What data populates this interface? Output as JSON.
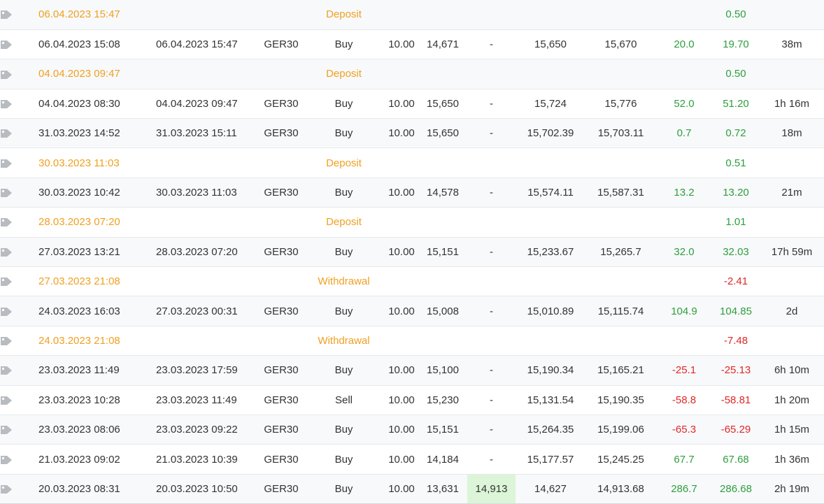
{
  "colors": {
    "orange": "#f0a020",
    "green": "#2e9e3e",
    "red": "#e02828",
    "tp_highlight": "#dcf5d8",
    "tag_icon": "#b8bcc0"
  },
  "icon": "tag-icon",
  "rows": [
    {
      "type": "balance",
      "open_time": "06.04.2023 15:47",
      "label": "Deposit",
      "profit": "0.50",
      "profit_color": "green"
    },
    {
      "type": "trade",
      "open_time": "06.04.2023 15:08",
      "close_time": "06.04.2023 15:47",
      "symbol": "GER30",
      "action": "Buy",
      "lots": "10.00",
      "sl": "14,671",
      "tp": "-",
      "open_price": "15,650",
      "close_price": "15,670",
      "pips": "20.0",
      "profit": "19.70",
      "duration": "38m",
      "profit_color": "green"
    },
    {
      "type": "balance",
      "open_time": "04.04.2023 09:47",
      "label": "Deposit",
      "profit": "0.50",
      "profit_color": "green"
    },
    {
      "type": "trade",
      "open_time": "04.04.2023 08:30",
      "close_time": "04.04.2023 09:47",
      "symbol": "GER30",
      "action": "Buy",
      "lots": "10.00",
      "sl": "15,650",
      "tp": "-",
      "open_price": "15,724",
      "close_price": "15,776",
      "pips": "52.0",
      "profit": "51.20",
      "duration": "1h 16m",
      "profit_color": "green"
    },
    {
      "type": "trade",
      "open_time": "31.03.2023 14:52",
      "close_time": "31.03.2023 15:11",
      "symbol": "GER30",
      "action": "Buy",
      "lots": "10.00",
      "sl": "15,650",
      "tp": "-",
      "open_price": "15,702.39",
      "close_price": "15,703.11",
      "pips": "0.7",
      "profit": "0.72",
      "duration": "18m",
      "profit_color": "green"
    },
    {
      "type": "balance",
      "open_time": "30.03.2023 11:03",
      "label": "Deposit",
      "profit": "0.51",
      "profit_color": "green"
    },
    {
      "type": "trade",
      "open_time": "30.03.2023 10:42",
      "close_time": "30.03.2023 11:03",
      "symbol": "GER30",
      "action": "Buy",
      "lots": "10.00",
      "sl": "14,578",
      "tp": "-",
      "open_price": "15,574.11",
      "close_price": "15,587.31",
      "pips": "13.2",
      "profit": "13.20",
      "duration": "21m",
      "profit_color": "green"
    },
    {
      "type": "balance",
      "open_time": "28.03.2023 07:20",
      "label": "Deposit",
      "profit": "1.01",
      "profit_color": "green"
    },
    {
      "type": "trade",
      "open_time": "27.03.2023 13:21",
      "close_time": "28.03.2023 07:20",
      "symbol": "GER30",
      "action": "Buy",
      "lots": "10.00",
      "sl": "15,151",
      "tp": "-",
      "open_price": "15,233.67",
      "close_price": "15,265.7",
      "pips": "32.0",
      "profit": "32.03",
      "duration": "17h 59m",
      "profit_color": "green"
    },
    {
      "type": "balance",
      "open_time": "27.03.2023 21:08",
      "label": "Withdrawal",
      "profit": "-2.41",
      "profit_color": "red"
    },
    {
      "type": "trade",
      "open_time": "24.03.2023 16:03",
      "close_time": "27.03.2023 00:31",
      "symbol": "GER30",
      "action": "Buy",
      "lots": "10.00",
      "sl": "15,008",
      "tp": "-",
      "open_price": "15,010.89",
      "close_price": "15,115.74",
      "pips": "104.9",
      "profit": "104.85",
      "duration": "2d",
      "profit_color": "green"
    },
    {
      "type": "balance",
      "open_time": "24.03.2023 21:08",
      "label": "Withdrawal",
      "profit": "-7.48",
      "profit_color": "red"
    },
    {
      "type": "trade",
      "open_time": "23.03.2023 11:49",
      "close_time": "23.03.2023 17:59",
      "symbol": "GER30",
      "action": "Buy",
      "lots": "10.00",
      "sl": "15,100",
      "tp": "-",
      "open_price": "15,190.34",
      "close_price": "15,165.21",
      "pips": "-25.1",
      "profit": "-25.13",
      "duration": "6h 10m",
      "profit_color": "red"
    },
    {
      "type": "trade",
      "open_time": "23.03.2023 10:28",
      "close_time": "23.03.2023 11:49",
      "symbol": "GER30",
      "action": "Sell",
      "lots": "10.00",
      "sl": "15,230",
      "tp": "-",
      "open_price": "15,131.54",
      "close_price": "15,190.35",
      "pips": "-58.8",
      "profit": "-58.81",
      "duration": "1h 20m",
      "profit_color": "red"
    },
    {
      "type": "trade",
      "open_time": "23.03.2023 08:06",
      "close_time": "23.03.2023 09:22",
      "symbol": "GER30",
      "action": "Buy",
      "lots": "10.00",
      "sl": "15,151",
      "tp": "-",
      "open_price": "15,264.35",
      "close_price": "15,199.06",
      "pips": "-65.3",
      "profit": "-65.29",
      "duration": "1h 15m",
      "profit_color": "red"
    },
    {
      "type": "trade",
      "open_time": "21.03.2023 09:02",
      "close_time": "21.03.2023 10:39",
      "symbol": "GER30",
      "action": "Buy",
      "lots": "10.00",
      "sl": "14,184",
      "tp": "-",
      "open_price": "15,177.57",
      "close_price": "15,245.25",
      "pips": "67.7",
      "profit": "67.68",
      "duration": "1h 36m",
      "profit_color": "green"
    },
    {
      "type": "trade",
      "open_time": "20.03.2023 08:31",
      "close_time": "20.03.2023 10:50",
      "symbol": "GER30",
      "action": "Buy",
      "lots": "10.00",
      "sl": "13,631",
      "tp": "14,913",
      "tp_hit": true,
      "open_price": "14,627",
      "close_price": "14,913.68",
      "pips": "286.7",
      "profit": "286.68",
      "duration": "2h 19m",
      "profit_color": "green"
    }
  ]
}
